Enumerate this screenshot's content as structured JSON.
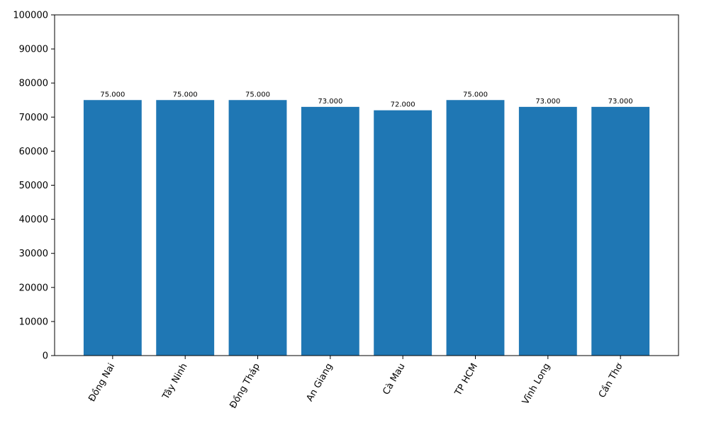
{
  "chart_data": {
    "type": "bar",
    "categories": [
      "Đồng Nai",
      "Tây Ninh",
      "Đồng Tháp",
      "An Giang",
      "Cà Mau",
      "TP HCM",
      "Vĩnh Long",
      "Cần Thơ"
    ],
    "values": [
      75000,
      75000,
      75000,
      73000,
      72000,
      75000,
      73000,
      73000
    ],
    "data_labels": [
      "75.000",
      "75.000",
      "75.000",
      "73.000",
      "72.000",
      "75.000",
      "73.000",
      "73.000"
    ],
    "y_ticks": [
      0,
      10000,
      20000,
      30000,
      40000,
      50000,
      60000,
      70000,
      80000,
      90000,
      100000
    ],
    "ylim": [
      0,
      100000
    ],
    "title": "",
    "xlabel": "",
    "ylabel": "",
    "bar_color": "#1f77b4",
    "grid": false,
    "x_tick_rotation_deg": 60
  }
}
